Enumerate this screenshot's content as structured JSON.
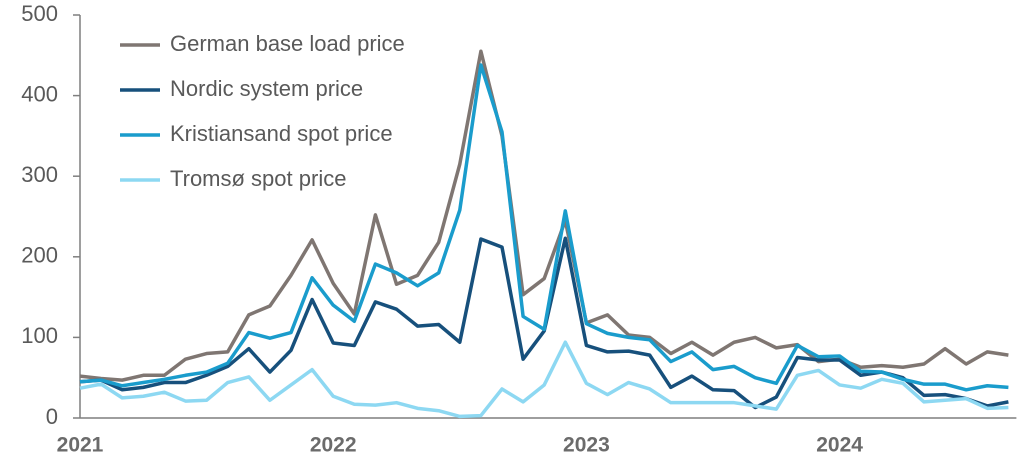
{
  "chart_data": {
    "type": "line",
    "categories": [
      "2021",
      null,
      null,
      null,
      null,
      null,
      null,
      null,
      null,
      null,
      null,
      null,
      "2022",
      null,
      null,
      null,
      null,
      null,
      null,
      null,
      null,
      null,
      null,
      null,
      "2023",
      null,
      null,
      null,
      null,
      null,
      null,
      null,
      null,
      null,
      null,
      null,
      "2024",
      null,
      null,
      null,
      null,
      null,
      null,
      null,
      null
    ],
    "series": [
      {
        "name": "German base load price",
        "color": "#7f7672",
        "values": [
          52,
          49,
          47,
          53,
          53,
          73,
          80,
          82,
          128,
          139,
          177,
          221,
          167,
          129,
          252,
          166,
          177,
          218,
          315,
          455,
          350,
          153,
          173,
          245,
          118,
          128,
          103,
          100,
          80,
          94,
          78,
          94,
          100,
          87,
          91,
          70,
          73,
          63,
          65,
          63,
          67,
          86,
          67,
          82,
          78
        ]
      },
      {
        "name": "Nordic system price",
        "color": "#17507c",
        "values": [
          45,
          47,
          35,
          38,
          44,
          44,
          53,
          64,
          86,
          57,
          84,
          147,
          93,
          90,
          144,
          135,
          114,
          116,
          94,
          222,
          212,
          73,
          108,
          223,
          90,
          82,
          83,
          78,
          38,
          52,
          35,
          34,
          13,
          26,
          75,
          72,
          72,
          53,
          57,
          50,
          28,
          29,
          24,
          15,
          20
        ]
      },
      {
        "name": "Kristiansand spot price",
        "color": "#1a9ccc",
        "values": [
          45,
          47,
          40,
          44,
          48,
          53,
          57,
          68,
          106,
          99,
          106,
          174,
          140,
          120,
          191,
          180,
          164,
          180,
          258,
          438,
          355,
          126,
          110,
          257,
          117,
          105,
          100,
          97,
          70,
          82,
          60,
          64,
          50,
          43,
          90,
          76,
          77,
          58,
          57,
          48,
          42,
          42,
          35,
          40,
          38
        ]
      },
      {
        "name": "Tromsø spot price",
        "color": "#8dd8f2",
        "values": [
          37,
          42,
          25,
          27,
          32,
          21,
          22,
          44,
          51,
          22,
          41,
          60,
          27,
          17,
          16,
          19,
          12,
          9,
          2,
          3,
          36,
          20,
          41,
          94,
          43,
          29,
          44,
          36,
          19,
          19,
          19,
          19,
          15,
          11,
          53,
          59,
          41,
          37,
          48,
          43,
          20,
          22,
          24,
          12,
          13
        ]
      }
    ],
    "ylim": [
      0,
      500
    ],
    "yticks": [
      0,
      100,
      200,
      300,
      400,
      500
    ],
    "grid": false,
    "legend": "upper left"
  }
}
